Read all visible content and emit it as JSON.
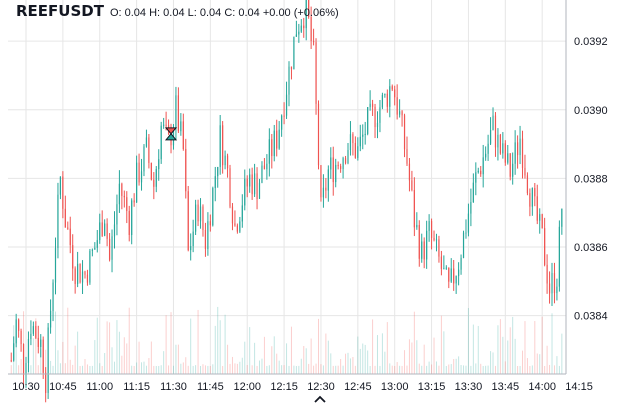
{
  "header": {
    "symbol": "REEFUSDT",
    "ohlc": "O: 0.04 H: 0.04 L: 0.04 C: 0.04 +0.00 (+0.06%)"
  },
  "colors": {
    "up": "#26a69a",
    "down": "#ef5350",
    "grid": "#e6e6e6",
    "axis_text": "#131722",
    "background": "#ffffff"
  },
  "chart_data": {
    "type": "candlestick",
    "symbol": "REEFUSDT",
    "x_ticks": [
      "10:30",
      "10:45",
      "11:00",
      "11:15",
      "11:30",
      "11:45",
      "12:00",
      "12:15",
      "12:30",
      "12:45",
      "13:00",
      "13:15",
      "13:30",
      "13:45",
      "14:00",
      "14:15"
    ],
    "y_ticks": [
      "0.0384",
      "0.0386",
      "0.0388",
      "0.0390",
      "0.0392"
    ],
    "ylim": [
      0.03823,
      0.03932
    ],
    "grid": true,
    "close_path": [
      {
        "t": "10:24",
        "p": 0.03827
      },
      {
        "t": "10:26",
        "p": 0.03838
      },
      {
        "t": "10:29",
        "p": 0.03826
      },
      {
        "t": "10:32",
        "p": 0.03838
      },
      {
        "t": "10:36",
        "p": 0.03832
      },
      {
        "t": "10:38",
        "p": 0.03822
      },
      {
        "t": "10:40",
        "p": 0.03842
      },
      {
        "t": "10:42",
        "p": 0.03862
      },
      {
        "t": "10:44",
        "p": 0.0388
      },
      {
        "t": "10:46",
        "p": 0.03868
      },
      {
        "t": "10:50",
        "p": 0.03854
      },
      {
        "t": "10:54",
        "p": 0.03852
      },
      {
        "t": "10:58",
        "p": 0.0386
      },
      {
        "t": "11:02",
        "p": 0.0387
      },
      {
        "t": "11:04",
        "p": 0.03856
      },
      {
        "t": "11:08",
        "p": 0.03878
      },
      {
        "t": "11:12",
        "p": 0.03868
      },
      {
        "t": "11:15",
        "p": 0.0388
      },
      {
        "t": "11:19",
        "p": 0.03888
      },
      {
        "t": "11:22",
        "p": 0.03878
      },
      {
        "t": "11:25",
        "p": 0.03895
      },
      {
        "t": "11:28",
        "p": 0.0389
      },
      {
        "t": "11:31",
        "p": 0.039
      },
      {
        "t": "11:34",
        "p": 0.03888
      },
      {
        "t": "11:36",
        "p": 0.03858
      },
      {
        "t": "11:40",
        "p": 0.03872
      },
      {
        "t": "11:43",
        "p": 0.03862
      },
      {
        "t": "11:46",
        "p": 0.03876
      },
      {
        "t": "11:49",
        "p": 0.03892
      },
      {
        "t": "11:52",
        "p": 0.03882
      },
      {
        "t": "11:55",
        "p": 0.03866
      },
      {
        "t": "11:58",
        "p": 0.03874
      },
      {
        "t": "12:01",
        "p": 0.0388
      },
      {
        "t": "12:04",
        "p": 0.03878
      },
      {
        "t": "12:08",
        "p": 0.03885
      },
      {
        "t": "12:12",
        "p": 0.03892
      },
      {
        "t": "12:16",
        "p": 0.03907
      },
      {
        "t": "12:20",
        "p": 0.03924
      },
      {
        "t": "12:24",
        "p": 0.0393
      },
      {
        "t": "12:27",
        "p": 0.03915
      },
      {
        "t": "12:30",
        "p": 0.0387
      },
      {
        "t": "12:33",
        "p": 0.03882
      },
      {
        "t": "12:37",
        "p": 0.03885
      },
      {
        "t": "12:41",
        "p": 0.0389
      },
      {
        "t": "12:45",
        "p": 0.03888
      },
      {
        "t": "12:49",
        "p": 0.03896
      },
      {
        "t": "12:53",
        "p": 0.039
      },
      {
        "t": "12:56",
        "p": 0.03903
      },
      {
        "t": "12:59",
        "p": 0.03908
      },
      {
        "t": "13:02",
        "p": 0.03898
      },
      {
        "t": "13:05",
        "p": 0.03885
      },
      {
        "t": "13:08",
        "p": 0.03868
      },
      {
        "t": "13:11",
        "p": 0.03858
      },
      {
        "t": "13:14",
        "p": 0.03864
      },
      {
        "t": "13:18",
        "p": 0.03856
      },
      {
        "t": "13:22",
        "p": 0.03847
      },
      {
        "t": "13:26",
        "p": 0.03856
      },
      {
        "t": "13:30",
        "p": 0.0387
      },
      {
        "t": "13:33",
        "p": 0.0388
      },
      {
        "t": "13:37",
        "p": 0.03888
      },
      {
        "t": "13:40",
        "p": 0.03895
      },
      {
        "t": "13:43",
        "p": 0.03888
      },
      {
        "t": "13:47",
        "p": 0.03882
      },
      {
        "t": "13:51",
        "p": 0.03892
      },
      {
        "t": "13:54",
        "p": 0.0388
      },
      {
        "t": "13:57",
        "p": 0.0387
      },
      {
        "t": "14:00",
        "p": 0.03862
      },
      {
        "t": "14:03",
        "p": 0.03848
      },
      {
        "t": "14:06",
        "p": 0.03852
      },
      {
        "t": "14:08",
        "p": 0.03872
      }
    ],
    "marker": {
      "t": "11:29",
      "p": 0.03893,
      "shape": "hourglass"
    }
  }
}
